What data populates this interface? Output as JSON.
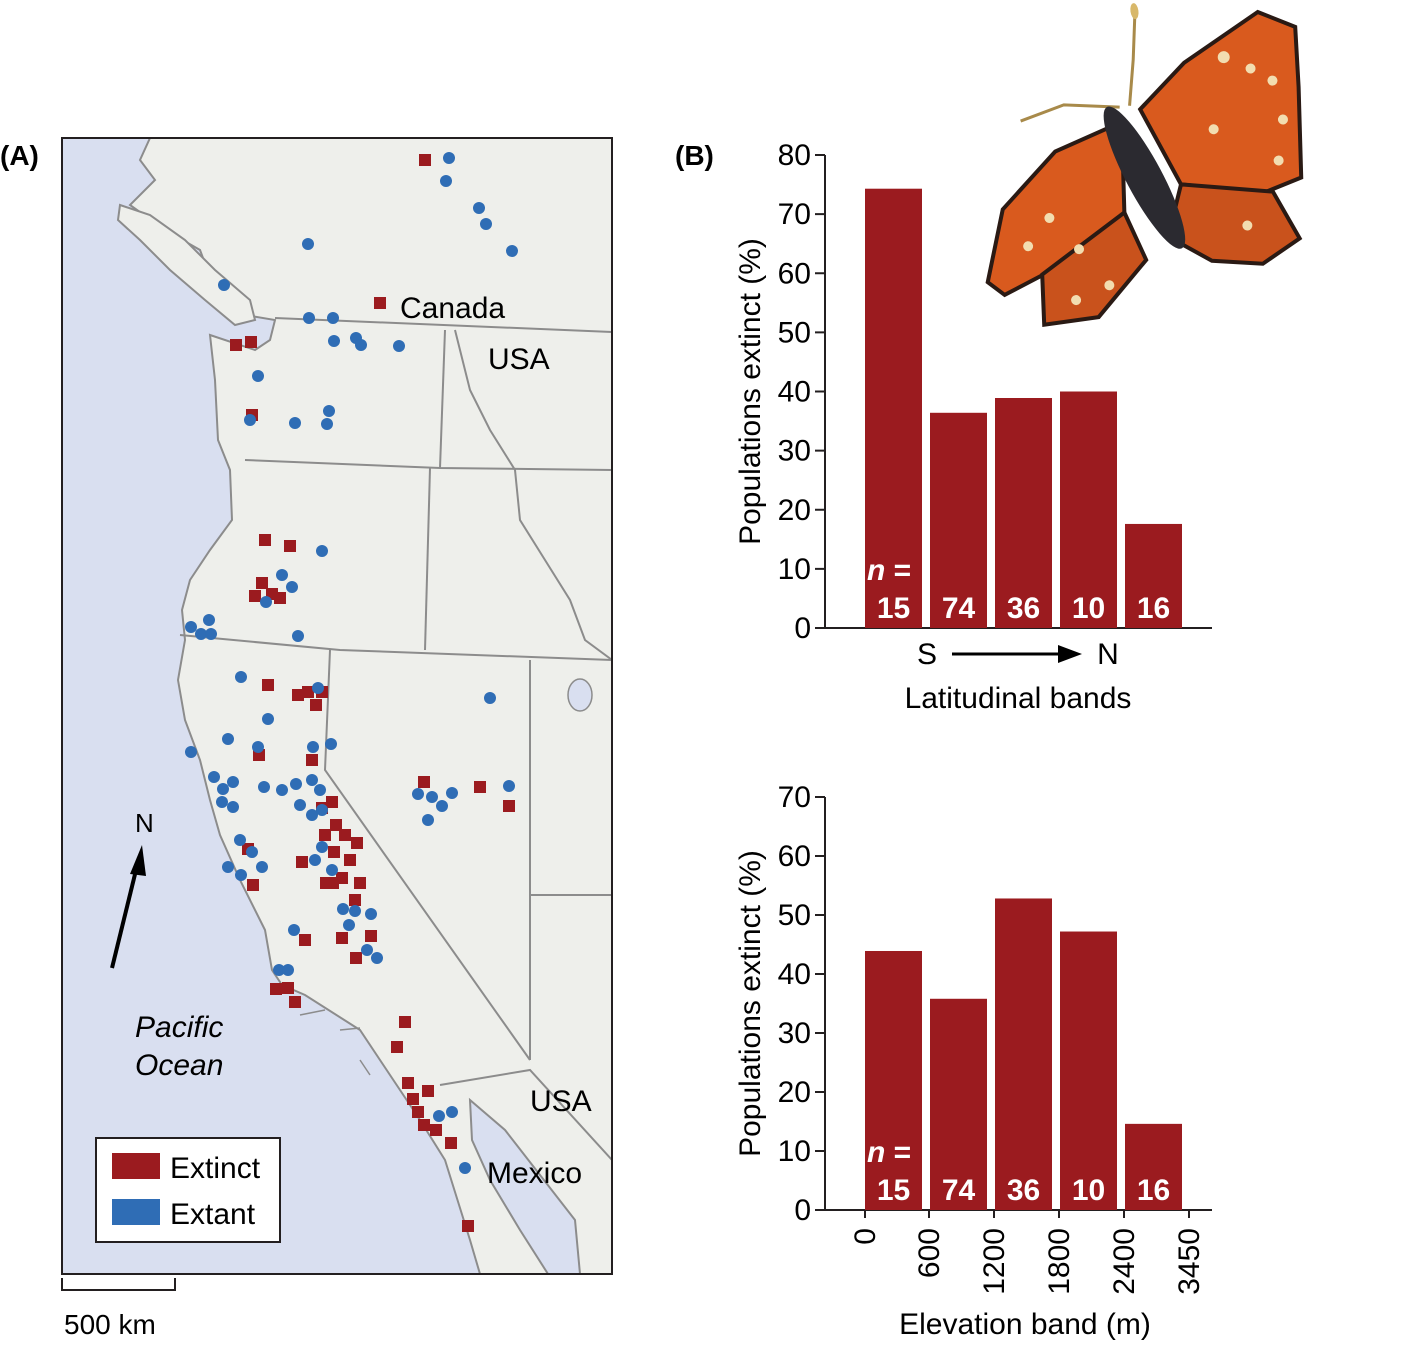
{
  "panel_a": {
    "label": "(A)",
    "country_labels": {
      "canada": "Canada",
      "usa_north": "USA",
      "usa_south": "USA",
      "mexico": "Mexico"
    },
    "ocean_label_line1": "Pacific",
    "ocean_label_line2": "Ocean",
    "north_label": "N",
    "scale_label": "500 km",
    "legend": {
      "extinct": "Extinct",
      "extant": "Extant"
    },
    "colors": {
      "extinct": "#9b1b1f",
      "extant": "#2f6db5",
      "ocean": "#d9dff0",
      "land": "#eeefeb",
      "border": "#8c8c8c"
    }
  },
  "panel_b": {
    "label": "(B)",
    "photo": "butterfly-photo"
  },
  "chart_data": [
    {
      "type": "bar",
      "categories": [
        "15",
        "74",
        "36",
        "10",
        "16"
      ],
      "values": [
        74.3,
        36.4,
        38.9,
        40.0,
        17.6
      ],
      "n_prefix": "n",
      "n_equals": "=",
      "counts": [
        "15",
        "74",
        "36",
        "10",
        "16"
      ],
      "ylabel": "Populations extinct (%)",
      "xlabel": "Latitudinal bands",
      "x_start": "S",
      "x_end": "N",
      "ylim": [
        0,
        80
      ],
      "yticks": [
        0,
        10,
        20,
        30,
        40,
        50,
        60,
        70,
        80
      ],
      "bar_color": "#9b1b1f"
    },
    {
      "type": "bar",
      "categories": [
        "0–600",
        "600–1200",
        "1200–1800",
        "1800–2400",
        "2400–3450"
      ],
      "values": [
        43.9,
        35.8,
        52.8,
        47.2,
        14.6
      ],
      "n_prefix": "n",
      "n_equals": "=",
      "counts": [
        "15",
        "74",
        "36",
        "10",
        "16"
      ],
      "ylabel": "Populations extinct (%)",
      "xlabel": "Elevation band (m)",
      "xticks": [
        "0",
        "600",
        "1200",
        "1800",
        "2400",
        "3450"
      ],
      "ylim": [
        0,
        70
      ],
      "yticks": [
        0,
        10,
        20,
        30,
        40,
        50,
        60,
        70
      ],
      "bar_color": "#9b1b1f"
    }
  ]
}
